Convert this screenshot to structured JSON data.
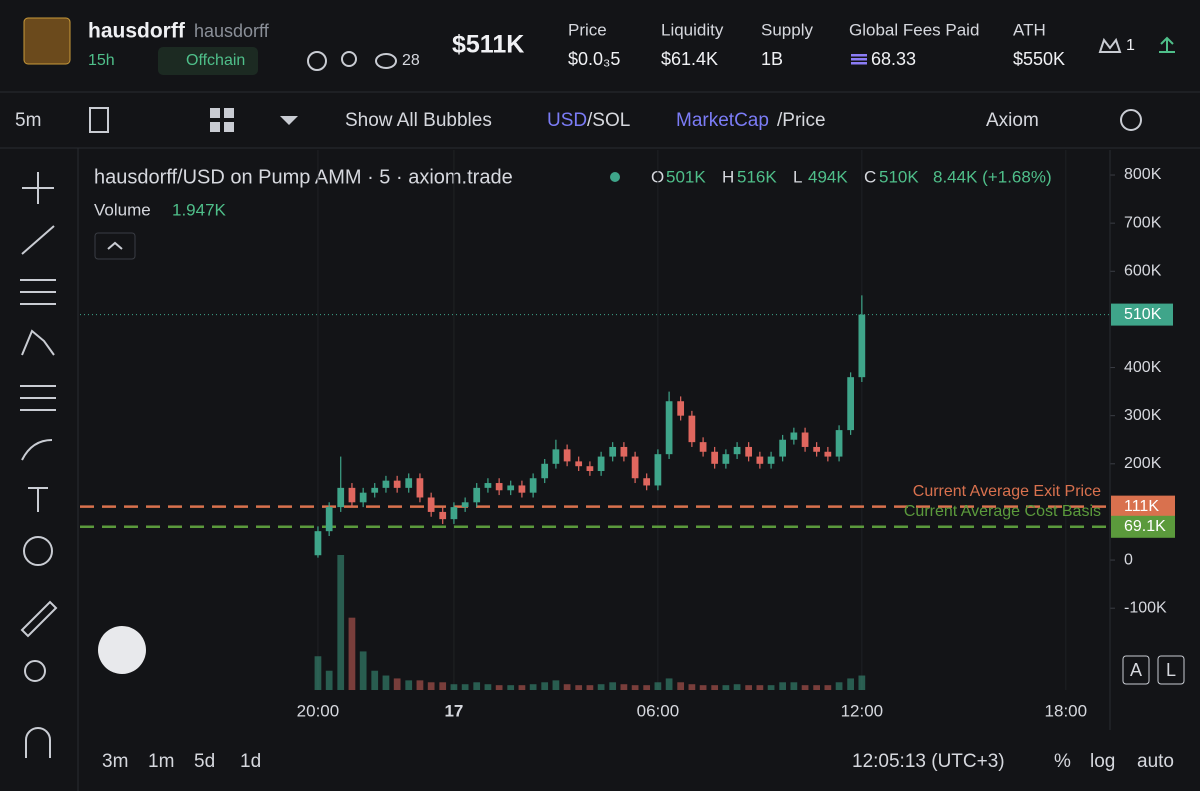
{
  "header": {
    "name": "hausdorff",
    "handle": "hausdorff",
    "age": "15h",
    "status": "Offchain",
    "watchers": "28",
    "market_cap": "$511K",
    "stats": [
      {
        "label": "Price",
        "value": "$0.0₃5"
      },
      {
        "label": "Liquidity",
        "value": "$61.4K"
      },
      {
        "label": "Supply",
        "value": "1B"
      },
      {
        "label": "Global Fees Paid",
        "value": "68.33"
      },
      {
        "label": "ATH",
        "value": "$550K"
      }
    ],
    "count": "1"
  },
  "toolbar": {
    "interval": "5m",
    "bubbles": "Show All Bubbles",
    "currency": "USD",
    "currency_alt": "/SOL",
    "mode": "MarketCap",
    "mode_alt": "/Price",
    "source": "Axiom"
  },
  "legend": {
    "title": "hausdorff/USD on Pump AMM · 5 · axiom.trade",
    "ohlc": [
      {
        "key": "O",
        "value": "501K"
      },
      {
        "key": "H",
        "value": "516K"
      },
      {
        "key": "L",
        "value": "494K"
      },
      {
        "key": "C",
        "value": "510K"
      }
    ],
    "change": "8.44K (+1.68%)",
    "volume_label": "Volume",
    "volume": "1.947K"
  },
  "chart_data": {
    "type": "candlestick",
    "x": [
      20,
      20.33,
      20.67,
      21,
      21.33,
      21.67,
      22,
      22.33,
      22.67,
      23,
      23.33,
      23.67,
      24,
      24.33,
      24.67,
      25,
      25.33,
      25.67,
      26,
      26.33,
      26.67,
      27,
      27.33,
      27.67,
      28,
      28.33,
      28.67,
      29,
      29.33,
      29.67,
      30,
      30.33,
      30.67,
      31,
      31.33,
      31.67,
      32,
      32.33,
      32.67,
      33,
      33.33,
      33.67,
      34,
      34.33,
      34.67,
      35,
      35.33,
      35.67,
      36
    ],
    "open": [
      10,
      60,
      110,
      150,
      120,
      140,
      150,
      165,
      150,
      170,
      130,
      100,
      85,
      110,
      120,
      150,
      160,
      145,
      155,
      140,
      170,
      200,
      230,
      205,
      195,
      185,
      215,
      235,
      215,
      170,
      155,
      220,
      330,
      300,
      245,
      225,
      200,
      220,
      235,
      215,
      200,
      215,
      250,
      265,
      235,
      225,
      215,
      270,
      380
    ],
    "high": [
      70,
      120,
      215,
      160,
      150,
      160,
      175,
      175,
      180,
      180,
      140,
      110,
      120,
      130,
      160,
      170,
      170,
      165,
      165,
      180,
      210,
      250,
      240,
      215,
      205,
      225,
      245,
      245,
      225,
      180,
      230,
      350,
      340,
      310,
      255,
      235,
      230,
      245,
      245,
      225,
      225,
      260,
      275,
      275,
      245,
      235,
      280,
      390,
      550
    ],
    "low": [
      5,
      50,
      100,
      110,
      110,
      130,
      140,
      140,
      140,
      120,
      90,
      75,
      75,
      100,
      110,
      140,
      135,
      135,
      130,
      130,
      160,
      190,
      195,
      185,
      175,
      175,
      205,
      205,
      160,
      145,
      145,
      210,
      290,
      235,
      215,
      190,
      190,
      210,
      205,
      190,
      190,
      205,
      240,
      225,
      215,
      205,
      205,
      260,
      370
    ],
    "close": [
      60,
      110,
      150,
      120,
      140,
      150,
      165,
      150,
      170,
      130,
      100,
      85,
      110,
      120,
      150,
      160,
      145,
      155,
      140,
      170,
      200,
      230,
      205,
      195,
      185,
      215,
      235,
      215,
      170,
      155,
      220,
      330,
      300,
      245,
      225,
      200,
      220,
      235,
      215,
      200,
      215,
      250,
      265,
      235,
      225,
      215,
      270,
      380,
      510
    ],
    "volume": [
      35,
      20,
      140,
      75,
      40,
      20,
      15,
      12,
      10,
      10,
      8,
      8,
      6,
      6,
      8,
      6,
      5,
      5,
      5,
      6,
      8,
      10,
      6,
      5,
      5,
      6,
      8,
      6,
      5,
      5,
      8,
      12,
      8,
      6,
      5,
      5,
      5,
      6,
      5,
      5,
      5,
      8,
      8,
      5,
      5,
      5,
      8,
      12,
      15
    ],
    "up_color": "#3fa58a",
    "down_color": "#e0675f",
    "xlim": [
      13,
      43.3
    ],
    "ylim": [
      -270,
      852
    ],
    "xticks": [
      {
        "value": 20,
        "label": "20:00"
      },
      {
        "value": 24,
        "label": "17"
      },
      {
        "value": 30,
        "label": "06:00"
      },
      {
        "value": 36,
        "label": "12:00"
      },
      {
        "value": 42,
        "label": "18:00"
      }
    ],
    "yticks": [
      {
        "value": 800,
        "label": "800K"
      },
      {
        "value": 700,
        "label": "700K"
      },
      {
        "value": 600,
        "label": "600K"
      },
      {
        "value": 400,
        "label": "400K"
      },
      {
        "value": 300,
        "label": "300K"
      },
      {
        "value": 200,
        "label": "200K"
      },
      {
        "value": 0,
        "label": "0"
      },
      {
        "value": -100,
        "label": "-100K"
      }
    ],
    "price_lines": [
      {
        "name": "Current Average Exit Price",
        "value": 111,
        "label": "111K",
        "color": "#d9714e"
      },
      {
        "name": "Current Average Cost Basis",
        "value": 69.1,
        "label": "69.1K",
        "color": "#5b9a3c"
      }
    ],
    "last_price": {
      "value": 510,
      "label": "510K",
      "color": "#3fa58a"
    }
  },
  "footer": {
    "ranges": [
      "3m",
      "1m",
      "5d",
      "1d"
    ],
    "time": "12:05:13 (UTC+3)",
    "percent": "%",
    "log": "log",
    "auto": "auto",
    "scale_buttons": [
      "A",
      "L"
    ]
  }
}
